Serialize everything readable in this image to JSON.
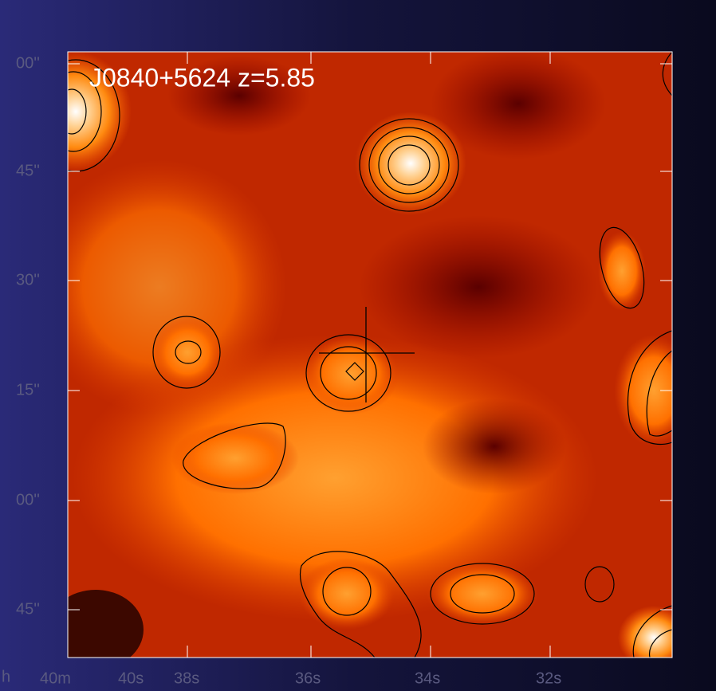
{
  "title": "J0840+5624 z=5.85",
  "y_labels": [
    "00''",
    "45''",
    "30''",
    "15''",
    "00''",
    "45''"
  ],
  "x_labels": [
    "h",
    "40m",
    "40s",
    "38s",
    "36s",
    "34s",
    "32s"
  ]
}
